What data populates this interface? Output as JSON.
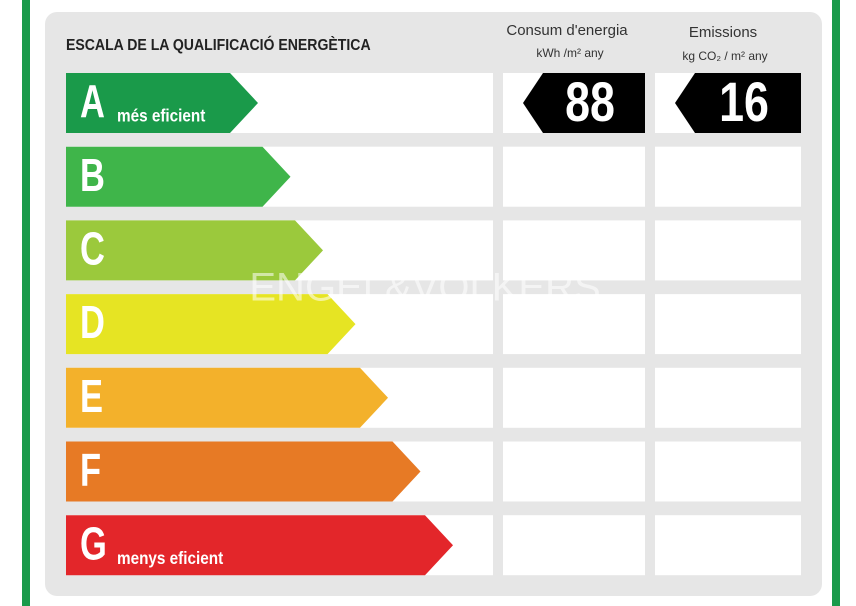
{
  "header": {
    "title": "ESCALA DE LA QUALIFICACIÓ ENERGÈTICA"
  },
  "columns": [
    {
      "title": "Consum d'energia",
      "unit": "kWh /m² any"
    },
    {
      "title": "Emissions",
      "unit": "kg CO₂ / m² any"
    }
  ],
  "watermark": "ENGEL&VÖLKERS",
  "rows": [
    {
      "letter": "A",
      "note": "més eficient",
      "color": "#1a9a4a",
      "values": [
        88,
        16
      ]
    },
    {
      "letter": "B",
      "color": "#3fb54a"
    },
    {
      "letter": "C",
      "color": "#9bc93c"
    },
    {
      "letter": "D",
      "color": "#e6e423"
    },
    {
      "letter": "E",
      "color": "#f3b12b"
    },
    {
      "letter": "F",
      "color": "#e77a25"
    },
    {
      "letter": "G",
      "note": "menys eficient",
      "color": "#e3262a"
    }
  ]
}
